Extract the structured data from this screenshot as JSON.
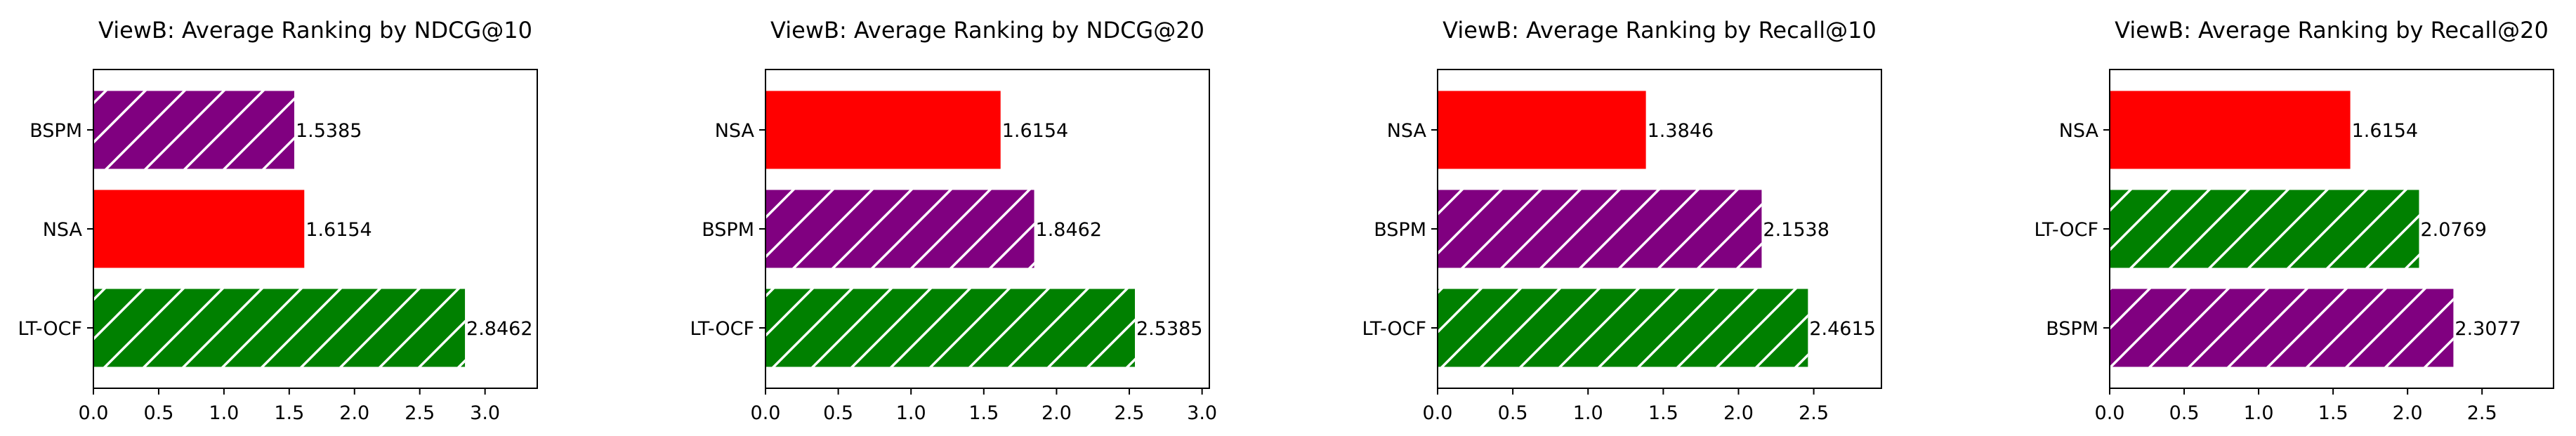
{
  "chart_data": [
    {
      "type": "bar",
      "orientation": "horizontal",
      "title": "ViewB: Average Ranking by NDCG@10",
      "categories": [
        "LT-OCF",
        "NSA",
        "BSPM"
      ],
      "values": [
        2.8462,
        1.6154,
        1.5385
      ],
      "value_labels": [
        "2.8462",
        "1.6154",
        "1.5385"
      ],
      "colors": [
        "#008000",
        "#ff0000",
        "#800080"
      ],
      "hatched": [
        true,
        false,
        true
      ],
      "xlim": [
        0,
        3.4
      ],
      "xticks": [
        "0.0",
        "0.5",
        "1.0",
        "1.5",
        "2.0",
        "2.5",
        "3.0"
      ],
      "xlabel": "",
      "ylabel": "",
      "grid": false
    },
    {
      "type": "bar",
      "orientation": "horizontal",
      "title": "ViewB: Average Ranking by NDCG@20",
      "categories": [
        "LT-OCF",
        "BSPM",
        "NSA"
      ],
      "values": [
        2.5385,
        1.8462,
        1.6154
      ],
      "value_labels": [
        "2.5385",
        "1.8462",
        "1.6154"
      ],
      "colors": [
        "#008000",
        "#800080",
        "#ff0000"
      ],
      "hatched": [
        true,
        true,
        false
      ],
      "xlim": [
        0,
        3.05
      ],
      "xticks": [
        "0.0",
        "0.5",
        "1.0",
        "1.5",
        "2.0",
        "2.5",
        "3.0"
      ],
      "xlabel": "",
      "ylabel": "",
      "grid": false
    },
    {
      "type": "bar",
      "orientation": "horizontal",
      "title": "ViewB: Average Ranking by Recall@10",
      "categories": [
        "LT-OCF",
        "BSPM",
        "NSA"
      ],
      "values": [
        2.4615,
        2.1538,
        1.3846
      ],
      "value_labels": [
        "2.4615",
        "2.1538",
        "1.3846"
      ],
      "colors": [
        "#008000",
        "#800080",
        "#ff0000"
      ],
      "hatched": [
        true,
        true,
        false
      ],
      "xlim": [
        0,
        2.95
      ],
      "xticks": [
        "0.0",
        "0.5",
        "1.0",
        "1.5",
        "2.0",
        "2.5"
      ],
      "xlabel": "",
      "ylabel": "",
      "grid": false
    },
    {
      "type": "bar",
      "orientation": "horizontal",
      "title": "ViewB: Average Ranking by Recall@20",
      "categories": [
        "BSPM",
        "LT-OCF",
        "NSA"
      ],
      "values": [
        2.3077,
        2.0769,
        1.6154
      ],
      "value_labels": [
        "2.3077",
        "2.0769",
        "1.6154"
      ],
      "colors": [
        "#800080",
        "#008000",
        "#ff0000"
      ],
      "hatched": [
        true,
        true,
        false
      ],
      "xlim": [
        0,
        2.98
      ],
      "xticks": [
        "0.0",
        "0.5",
        "1.0",
        "1.5",
        "2.0",
        "2.5"
      ],
      "xlabel": "",
      "ylabel": "",
      "grid": false
    }
  ]
}
